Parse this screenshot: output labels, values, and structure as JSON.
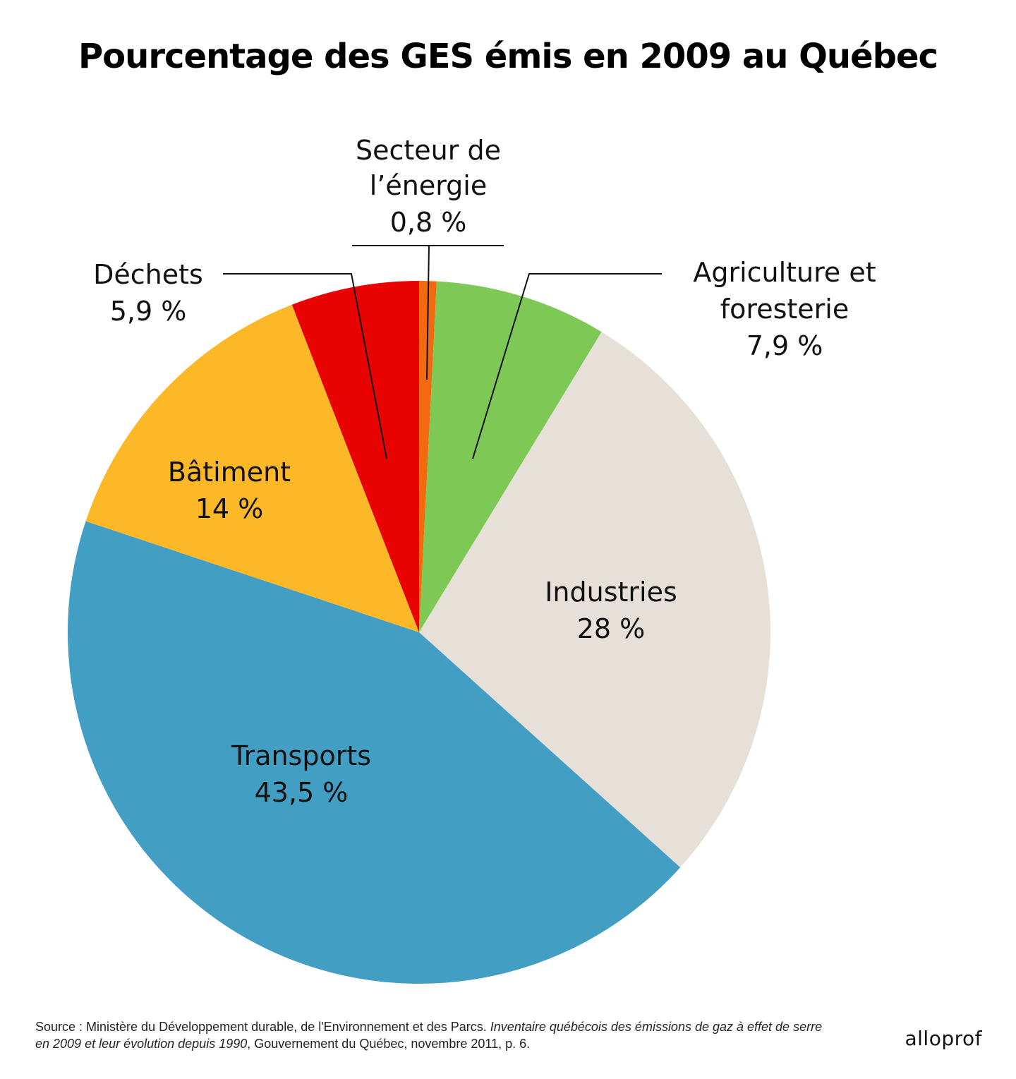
{
  "chart_data": {
    "type": "pie",
    "title": "Pourcentage des GES émis en 2009 au Québec",
    "start": "top",
    "direction": "clockwise",
    "slices": [
      {
        "key": "energie",
        "label_lines": [
          "Secteur de",
          "l’énergie"
        ],
        "value_label": "0,8 %",
        "value": 0.8,
        "color": "#f26a10"
      },
      {
        "key": "agriculture",
        "label_lines": [
          "Agriculture et",
          "foresterie"
        ],
        "value_label": "7,9 %",
        "value": 7.9,
        "color": "#7ec855"
      },
      {
        "key": "industries",
        "label_lines": [
          "Industries"
        ],
        "value_label": "28 %",
        "value": 28,
        "color": "#e6e0d8"
      },
      {
        "key": "transports",
        "label_lines": [
          "Transports"
        ],
        "value_label": "43,5 %",
        "value": 43.5,
        "color": "#429ec2"
      },
      {
        "key": "batiment",
        "label_lines": [
          "Bâtiment"
        ],
        "value_label": "14 %",
        "value": 14,
        "color": "#fdb827"
      },
      {
        "key": "dechets",
        "label_lines": [
          "Déchets"
        ],
        "value_label": "5,9 %",
        "value": 5.9,
        "color": "#e80202"
      }
    ]
  },
  "source": {
    "prefix": "Source : Ministère du Développement durable, de l'Environnement et des Parcs. ",
    "italic": "Inventaire québécois des émissions de gaz à effet de serre en 2009 et leur évolution depuis 1990",
    "suffix": ", Gouvernement du Québec, novembre 2011, p. 6."
  },
  "logo": "alloprof"
}
